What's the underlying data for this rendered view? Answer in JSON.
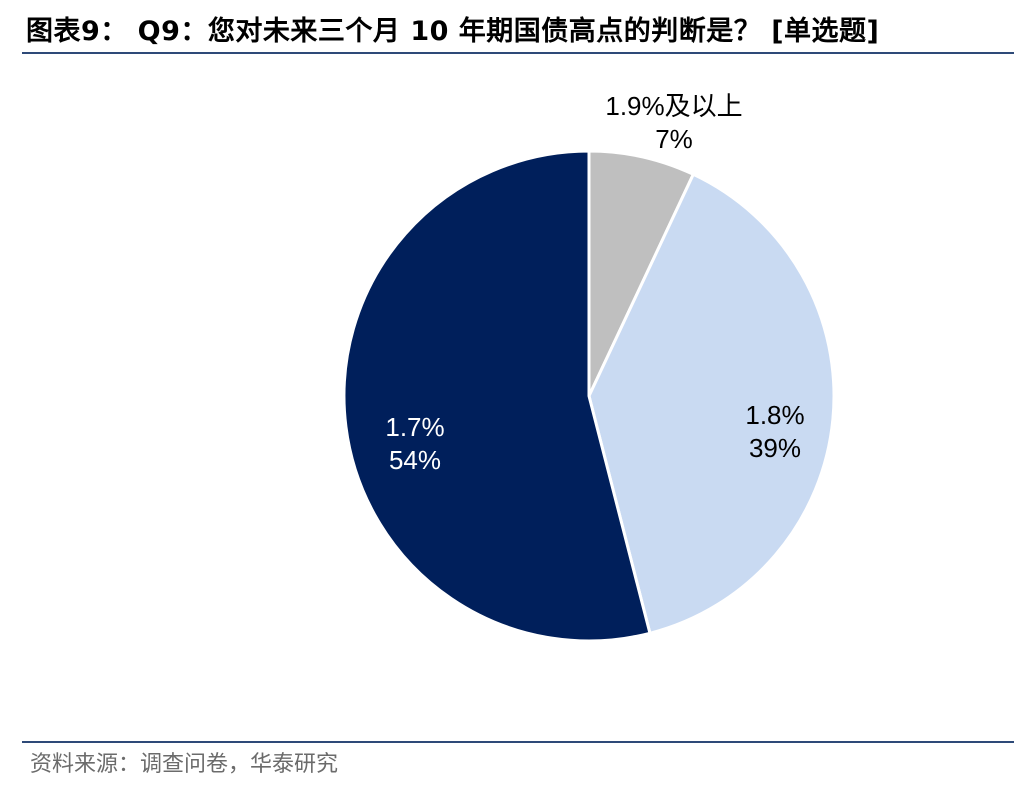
{
  "header": {
    "title": "图表9： Q9：您对未来三个月 10 年期国债高点的判断是？  [单选题]"
  },
  "footer": {
    "source": "资料来源：调查问卷，华泰研究"
  },
  "chart_data": {
    "type": "pie",
    "slices": [
      {
        "label": "1.9%及以上",
        "value": 7,
        "pct_label": "7%",
        "color": "#bfbfbf"
      },
      {
        "label": "1.8%",
        "value": 39,
        "pct_label": "39%",
        "color": "#c9daf2"
      },
      {
        "label": "1.7%",
        "value": 54,
        "pct_label": "54%",
        "color": "#001f5b"
      }
    ],
    "label_colors": [
      "#000000",
      "#000000",
      "#ffffff"
    ]
  }
}
